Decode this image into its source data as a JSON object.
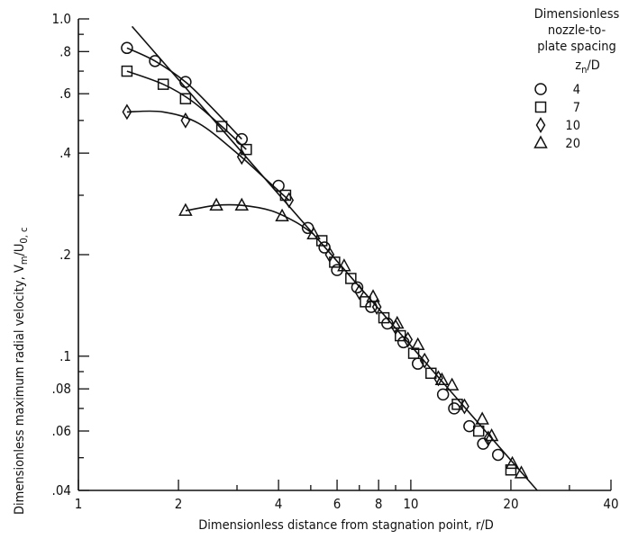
{
  "chart_data": {
    "type": "scatter",
    "xlabel": "Dimensionless distance from stagnation point,  r/D",
    "ylabel": "Dimensionless maximum radial velocity,  V",
    "ylabel_sub_m": "m",
    "ylabel_slash": "/U",
    "ylabel_sub_0c": "0, c",
    "x_scale": "log",
    "y_scale": "log",
    "xlim": [
      1,
      40
    ],
    "ylim": [
      0.04,
      1.0
    ],
    "x_ticks": [
      1,
      2,
      4,
      6,
      8,
      10,
      20,
      40
    ],
    "x_tick_labels": [
      "1",
      "2",
      "4",
      "6",
      "8",
      "10",
      "20",
      "40"
    ],
    "y_ticks": [
      0.04,
      0.06,
      0.08,
      0.1,
      0.2,
      0.4,
      0.6,
      0.8,
      1.0
    ],
    "y_tick_labels": [
      ".04",
      ".06",
      ".08",
      ".1",
      ".2",
      ".4",
      ".6",
      ".8",
      "1.0"
    ],
    "grid": false,
    "legend": {
      "title_lines": [
        "Dimensionless",
        "nozzle-to-",
        "plate spacing"
      ],
      "title_var": "z",
      "title_var_sub": "n",
      "title_var_tail": "/D",
      "placement": "top-right",
      "entries": [
        {
          "marker": "circle",
          "label": "4"
        },
        {
          "marker": "square",
          "label": "7"
        },
        {
          "marker": "diamond",
          "label": "10"
        },
        {
          "marker": "triangle",
          "label": "20"
        }
      ]
    },
    "correlation_line": {
      "x": [
        1.45,
        24.0
      ],
      "y": [
        0.95,
        0.04
      ]
    },
    "series": [
      {
        "marker": "circle",
        "x": [
          1.4,
          1.7,
          2.1,
          3.1,
          4.0,
          4.9,
          5.5,
          6.0,
          6.9,
          7.6,
          8.5,
          9.5,
          10.5,
          12.5,
          13.5,
          15.0,
          16.5,
          18.3
        ],
        "y": [
          0.82,
          0.75,
          0.65,
          0.44,
          0.32,
          0.24,
          0.21,
          0.18,
          0.16,
          0.14,
          0.125,
          0.11,
          0.095,
          0.077,
          0.07,
          0.062,
          0.055,
          0.051
        ],
        "fit": {
          "x": [
            1.4,
            1.7,
            2.1,
            2.5,
            3.1
          ],
          "y": [
            0.82,
            0.75,
            0.65,
            0.55,
            0.44
          ]
        }
      },
      {
        "marker": "square",
        "x": [
          1.4,
          1.8,
          2.1,
          2.7,
          3.2,
          4.2,
          5.4,
          5.9,
          6.6,
          7.3,
          8.3,
          9.3,
          10.2,
          11.5,
          13.8,
          16.0,
          20.0
        ],
        "y": [
          0.7,
          0.64,
          0.58,
          0.48,
          0.41,
          0.3,
          0.22,
          0.19,
          0.17,
          0.145,
          0.13,
          0.115,
          0.102,
          0.089,
          0.072,
          0.06,
          0.046
        ],
        "fit": {
          "x": [
            1.4,
            1.8,
            2.2,
            2.7,
            3.2
          ],
          "y": [
            0.7,
            0.64,
            0.57,
            0.48,
            0.41
          ]
        }
      },
      {
        "marker": "diamond",
        "x": [
          1.4,
          2.1,
          3.1,
          4.3,
          5.7,
          7.0,
          7.9,
          9.0,
          9.8,
          11.0,
          12.1,
          14.5,
          17.1
        ],
        "y": [
          0.53,
          0.5,
          0.39,
          0.29,
          0.2,
          0.155,
          0.14,
          0.122,
          0.112,
          0.097,
          0.086,
          0.071,
          0.057
        ],
        "fit": {
          "x": [
            1.4,
            1.8,
            2.3,
            3.0,
            3.6,
            4.3
          ],
          "y": [
            0.53,
            0.53,
            0.49,
            0.4,
            0.34,
            0.29
          ]
        }
      },
      {
        "marker": "triangle",
        "x": [
          2.1,
          2.6,
          3.1,
          4.1,
          5.1,
          6.3,
          7.7,
          9.1,
          10.5,
          12.4,
          13.3,
          16.4,
          17.5,
          20.2,
          21.5
        ],
        "y": [
          0.27,
          0.28,
          0.28,
          0.26,
          0.23,
          0.185,
          0.15,
          0.125,
          0.108,
          0.085,
          0.082,
          0.065,
          0.058,
          0.048,
          0.045
        ],
        "fit": {
          "x": [
            2.1,
            2.6,
            3.1,
            3.8,
            4.5,
            5.1
          ],
          "y": [
            0.27,
            0.28,
            0.28,
            0.27,
            0.25,
            0.23
          ]
        }
      }
    ]
  }
}
